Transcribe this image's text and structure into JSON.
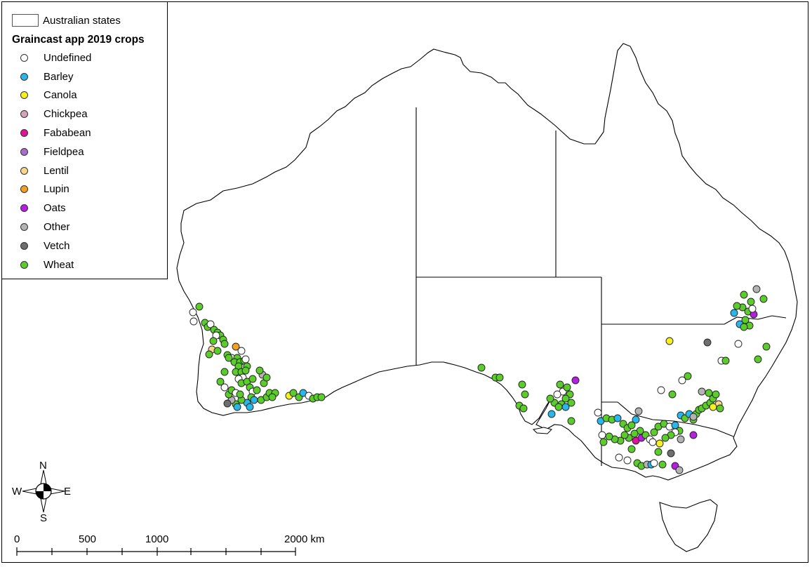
{
  "map": {
    "legend": {
      "states_label": "Australian states",
      "title": "Graincast app 2019 crops",
      "items": [
        {
          "label": "Undefined",
          "color": "#ffffff"
        },
        {
          "label": "Barley",
          "color": "#29b6e8"
        },
        {
          "label": "Canola",
          "color": "#f5f020"
        },
        {
          "label": "Chickpea",
          "color": "#d4a3bc"
        },
        {
          "label": "Fababean",
          "color": "#e0139a"
        },
        {
          "label": "Fieldpea",
          "color": "#a86dc9"
        },
        {
          "label": "Lentil",
          "color": "#f7d889"
        },
        {
          "label": "Lupin",
          "color": "#f2a021"
        },
        {
          "label": "Oats",
          "color": "#b51fe0"
        },
        {
          "label": "Other",
          "color": "#b3b3b3"
        },
        {
          "label": "Vetch",
          "color": "#6e6e6e"
        },
        {
          "label": "Wheat",
          "color": "#5ccb2c"
        }
      ]
    },
    "compass": {
      "n": "N",
      "s": "S",
      "e": "E",
      "w": "W"
    },
    "scale_bar": {
      "labels": [
        "0",
        "500",
        "1000",
        "2000 km"
      ]
    }
  }
}
